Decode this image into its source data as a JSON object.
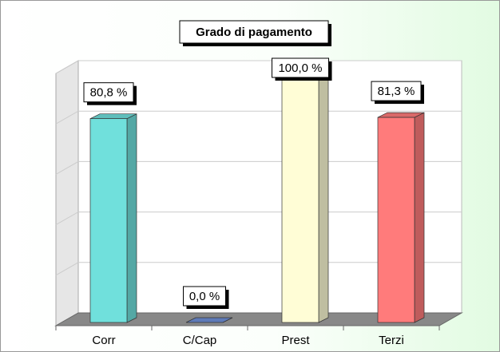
{
  "chart_data": {
    "type": "bar3d",
    "title": "Grado di pagamento",
    "categories": [
      "Corr",
      "C/Cap",
      "Prest",
      "Terzi"
    ],
    "values": [
      80.8,
      0.0,
      100.0,
      81.3
    ],
    "value_labels": [
      "80,8 %",
      "0,0 %",
      "100,0 %",
      "81,3 %"
    ],
    "colors": [
      "#70e0dc",
      "#6f90d8",
      "#fffdd6",
      "#ff7b7b"
    ],
    "ylim": [
      0,
      100
    ],
    "yticks": [
      0,
      20,
      40,
      60,
      80,
      100
    ],
    "grid": true
  }
}
